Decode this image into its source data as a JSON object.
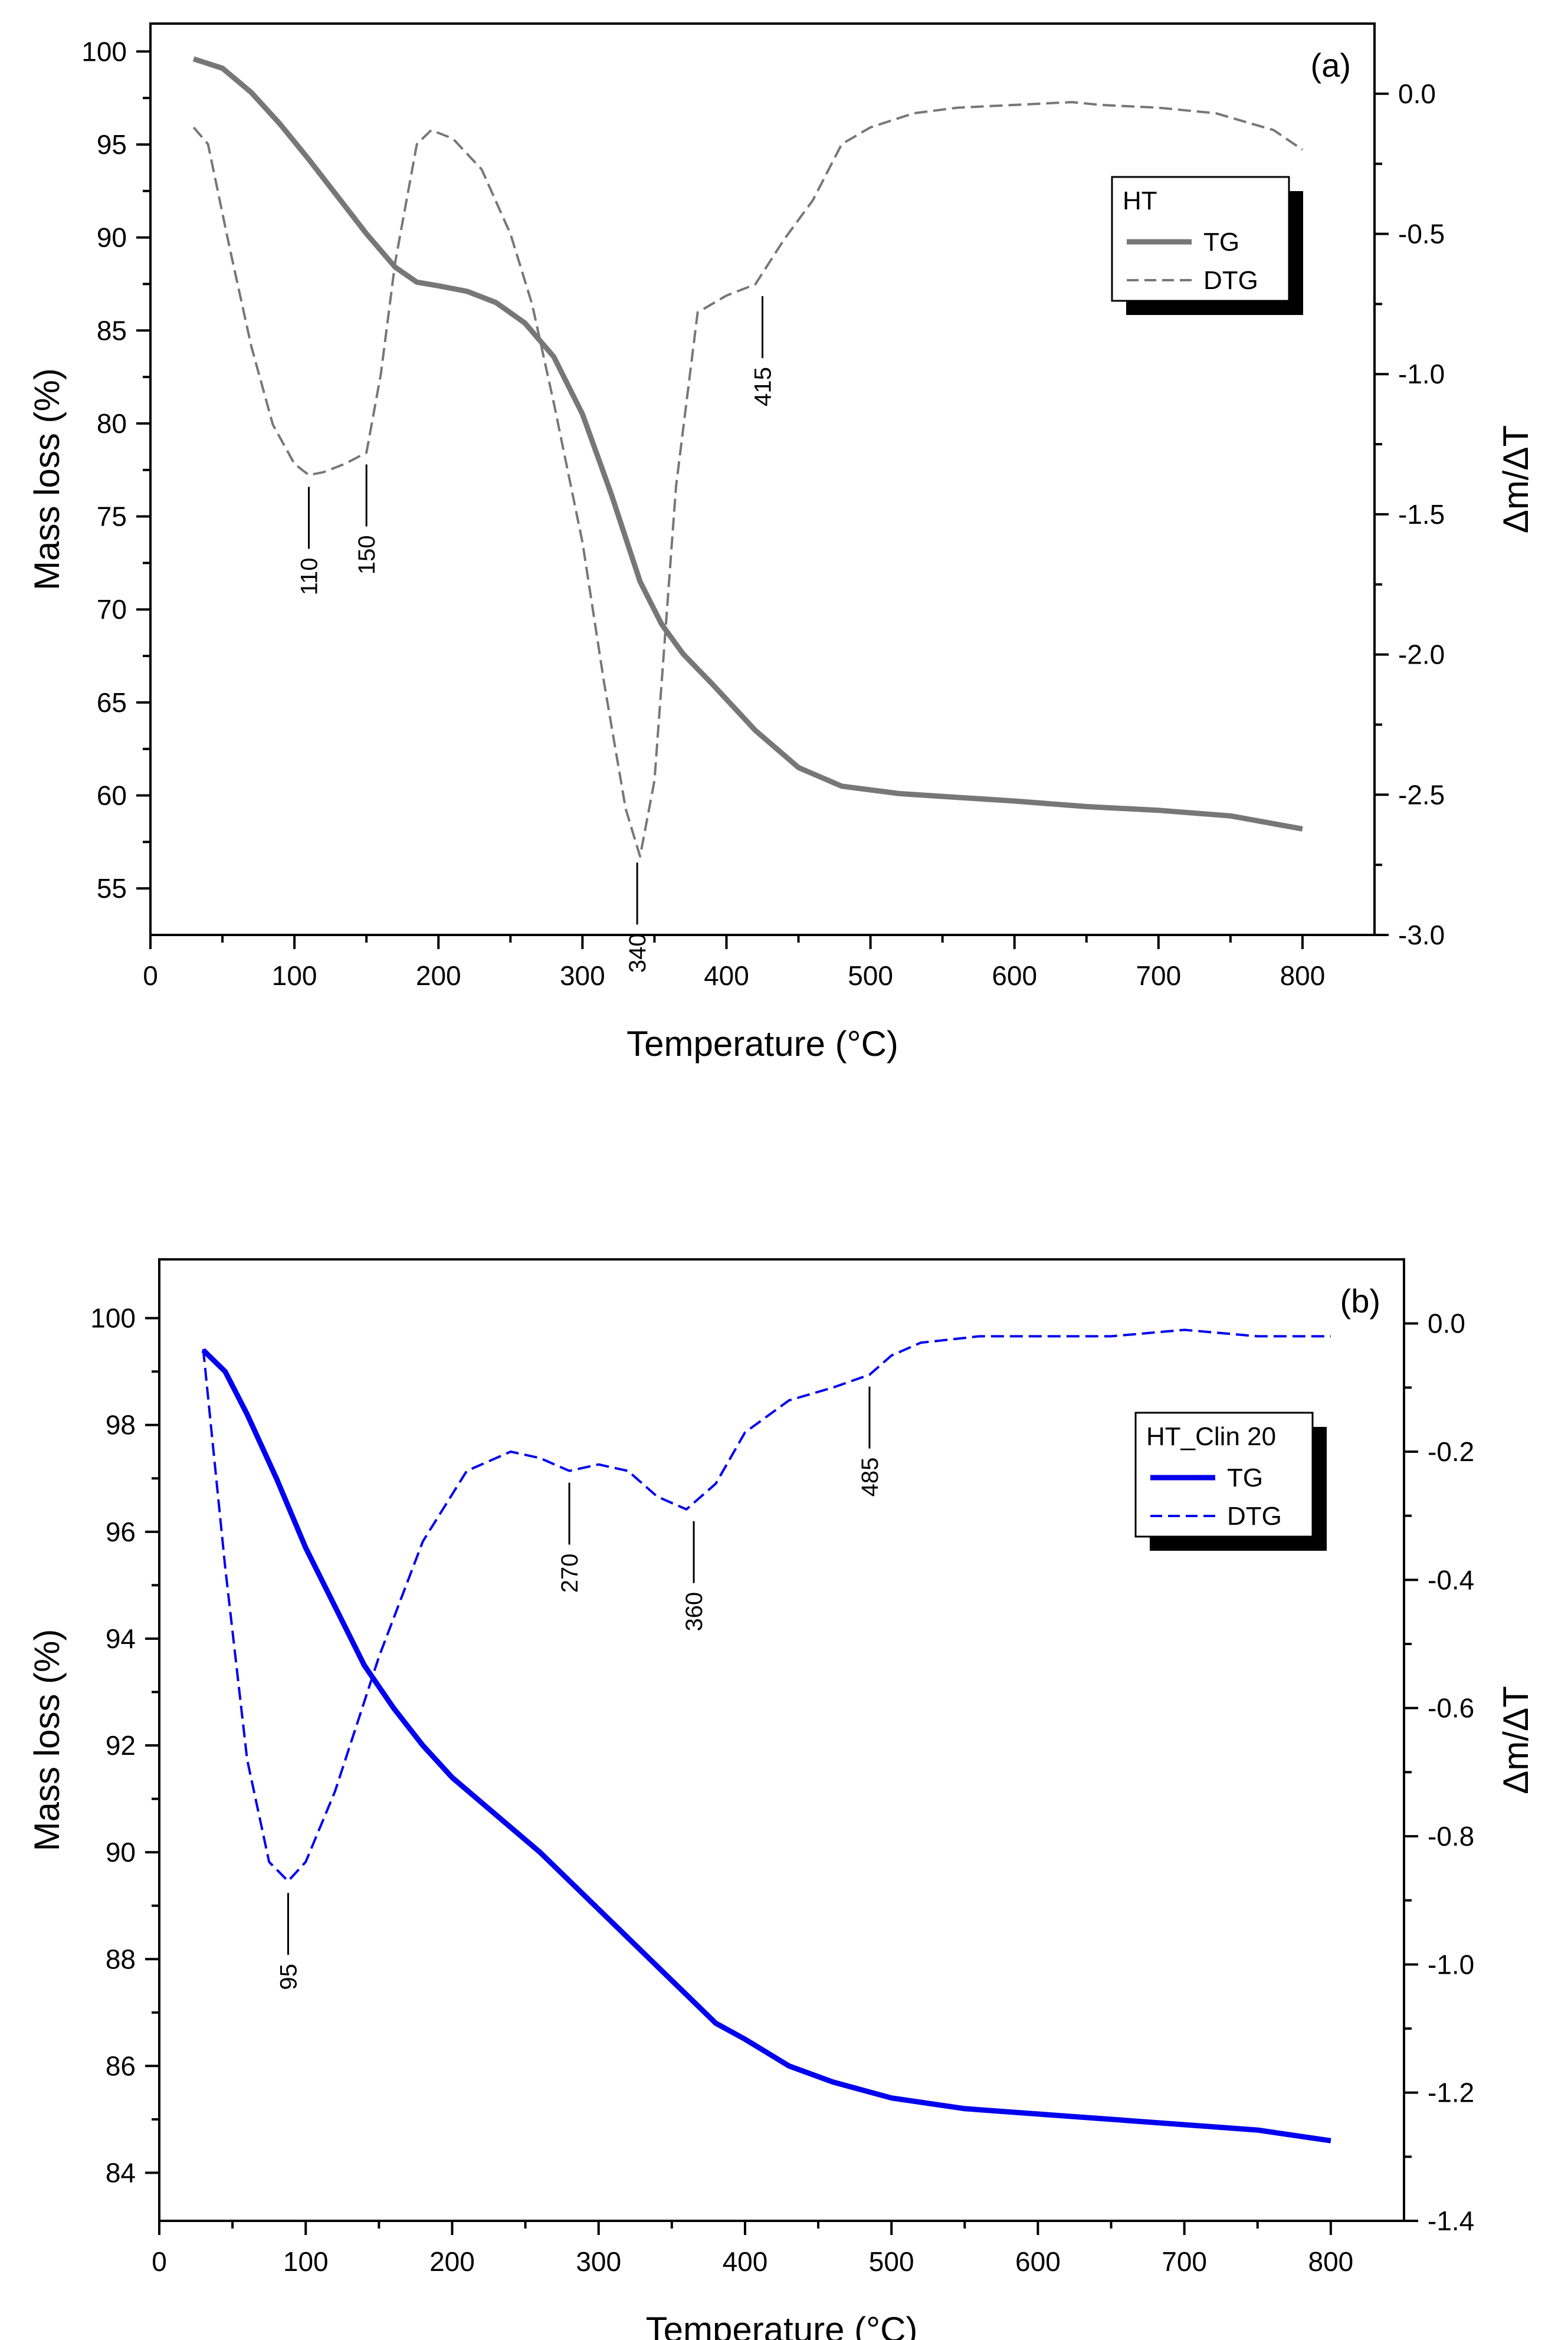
{
  "chart_data": [
    {
      "type": "line",
      "panel_label": "(a)",
      "xlabel": "Temperature (°C)",
      "ylabel": "Mass loss (%)",
      "y2label": "Δm/ΔT",
      "xlim": [
        0,
        850
      ],
      "ylim": [
        52.5,
        101.5
      ],
      "y2lim": [
        -3.0,
        0.25
      ],
      "xticks": [
        0,
        100,
        200,
        300,
        400,
        500,
        600,
        700,
        800
      ],
      "yticks": [
        55,
        60,
        65,
        70,
        75,
        80,
        85,
        90,
        95,
        100
      ],
      "y2ticks": [
        -3.0,
        -2.5,
        -2.0,
        -1.5,
        -1.0,
        -0.5,
        0.0
      ],
      "y2_decimals": 1,
      "colors": {
        "tg": "#777777",
        "dtg": "#777777"
      },
      "legend": {
        "title": "HT",
        "entries": [
          "TG",
          "DTG"
        ],
        "placement": "top-right"
      },
      "series": [
        {
          "name": "TG",
          "axis": "left",
          "style": "solid",
          "x": [
            30,
            50,
            70,
            90,
            110,
            130,
            150,
            170,
            185,
            200,
            220,
            240,
            260,
            280,
            300,
            320,
            340,
            355,
            370,
            390,
            420,
            450,
            480,
            520,
            560,
            600,
            650,
            700,
            750,
            800
          ],
          "y": [
            99.6,
            99.1,
            97.8,
            96.1,
            94.2,
            92.2,
            90.2,
            88.4,
            87.6,
            87.4,
            87.1,
            86.5,
            85.4,
            83.6,
            80.5,
            76.2,
            71.5,
            69.2,
            67.6,
            66.0,
            63.5,
            61.5,
            60.5,
            60.1,
            59.9,
            59.7,
            59.4,
            59.2,
            58.9,
            58.2
          ]
        },
        {
          "name": "DTG",
          "axis": "right",
          "style": "dashed",
          "x": [
            30,
            40,
            55,
            70,
            85,
            100,
            110,
            120,
            135,
            150,
            160,
            170,
            185,
            195,
            210,
            230,
            250,
            265,
            280,
            300,
            315,
            330,
            340,
            350,
            365,
            380,
            400,
            420,
            440,
            460,
            480,
            500,
            530,
            560,
            600,
            640,
            660,
            700,
            740,
            760,
            780,
            800
          ],
          "y": [
            -0.12,
            -0.18,
            -0.55,
            -0.9,
            -1.18,
            -1.32,
            -1.36,
            -1.35,
            -1.32,
            -1.28,
            -1.0,
            -0.6,
            -0.18,
            -0.13,
            -0.16,
            -0.27,
            -0.5,
            -0.75,
            -1.1,
            -1.6,
            -2.1,
            -2.55,
            -2.72,
            -2.45,
            -1.4,
            -0.78,
            -0.72,
            -0.68,
            -0.52,
            -0.38,
            -0.18,
            -0.12,
            -0.07,
            -0.05,
            -0.04,
            -0.03,
            -0.04,
            -0.05,
            -0.07,
            -0.1,
            -0.13,
            -0.2
          ]
        }
      ],
      "annotations": [
        {
          "label": "110",
          "x": 110,
          "y": -1.36,
          "axis": "right",
          "side": "below"
        },
        {
          "label": "150",
          "x": 150,
          "y": -1.28,
          "axis": "right",
          "side": "below"
        },
        {
          "label": "340",
          "x": 338,
          "y": -2.7,
          "axis": "right",
          "side": "below"
        },
        {
          "label": "415",
          "x": 425,
          "y": -0.68,
          "axis": "right",
          "side": "below"
        }
      ]
    },
    {
      "type": "line",
      "panel_label": "(b)",
      "xlabel": "Temperature (°C)",
      "ylabel": "Mass loss (%)",
      "y2label": "Δm/ΔT",
      "xlim": [
        0,
        850
      ],
      "ylim": [
        83.1,
        101.1
      ],
      "y2lim": [
        -1.4,
        0.1
      ],
      "xticks": [
        0,
        100,
        200,
        300,
        400,
        500,
        600,
        700,
        800
      ],
      "yticks": [
        84,
        86,
        88,
        90,
        92,
        94,
        96,
        98,
        100
      ],
      "y2ticks": [
        -1.4,
        -1.2,
        -1.0,
        -0.8,
        -0.6,
        -0.4,
        -0.2,
        0.0
      ],
      "y2_decimals": 1,
      "colors": {
        "tg": "#0000ee",
        "dtg": "#0000ee"
      },
      "legend": {
        "title": "HT_Clin 20",
        "entries": [
          "TG",
          "DTG"
        ],
        "placement": "top-right"
      },
      "series": [
        {
          "name": "TG",
          "axis": "left",
          "style": "solid",
          "x": [
            30,
            45,
            60,
            80,
            100,
            120,
            140,
            160,
            180,
            200,
            230,
            260,
            290,
            320,
            350,
            380,
            400,
            430,
            460,
            500,
            550,
            600,
            650,
            700,
            750,
            800
          ],
          "y": [
            99.4,
            99.0,
            98.2,
            97.0,
            95.7,
            94.6,
            93.5,
            92.7,
            92.0,
            91.4,
            90.7,
            90.0,
            89.2,
            88.4,
            87.6,
            86.8,
            86.5,
            86.0,
            85.7,
            85.4,
            85.2,
            85.1,
            85.0,
            84.9,
            84.8,
            84.6
          ]
        },
        {
          "name": "DTG",
          "axis": "right",
          "style": "dashed",
          "x": [
            30,
            45,
            60,
            75,
            88,
            100,
            120,
            150,
            180,
            210,
            240,
            260,
            280,
            300,
            320,
            340,
            360,
            380,
            400,
            430,
            460,
            485,
            500,
            520,
            560,
            600,
            650,
            700,
            750,
            800
          ],
          "y": [
            -0.04,
            -0.38,
            -0.68,
            -0.84,
            -0.87,
            -0.84,
            -0.73,
            -0.52,
            -0.34,
            -0.23,
            -0.2,
            -0.21,
            -0.23,
            -0.22,
            -0.23,
            -0.27,
            -0.29,
            -0.25,
            -0.17,
            -0.12,
            -0.1,
            -0.08,
            -0.05,
            -0.03,
            -0.02,
            -0.02,
            -0.02,
            -0.01,
            -0.02,
            -0.02
          ]
        }
      ],
      "annotations": [
        {
          "label": "95",
          "x": 88,
          "y": -0.87,
          "axis": "right",
          "side": "below"
        },
        {
          "label": "270",
          "x": 280,
          "y": -0.23,
          "axis": "right",
          "side": "below"
        },
        {
          "label": "360",
          "x": 365,
          "y": -0.29,
          "axis": "right",
          "side": "below"
        },
        {
          "label": "485",
          "x": 485,
          "y": -0.08,
          "axis": "right",
          "side": "below"
        }
      ]
    }
  ]
}
